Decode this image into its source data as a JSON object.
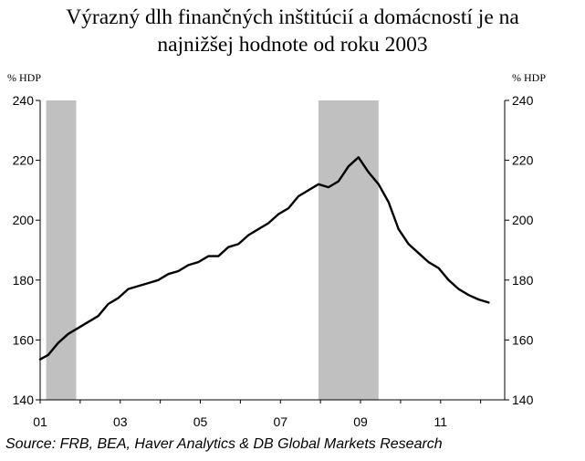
{
  "title_line1": "Výrazný dlh finančných inštitúcií a domácností je na",
  "title_line2": "najnižšej hodnote od roku 2003",
  "source": "Source: FRB, BEA, Haver Analytics & DB Global Markets Research",
  "colors": {
    "line": "#000000",
    "recession": "#c0c0c0",
    "axis": "#000000"
  },
  "chart_data": {
    "type": "line",
    "title": "Výrazný dlh finančných inštitúcií a domácností je na najnižšej hodnote od roku 2003",
    "ylabel_left": "% HDP",
    "ylabel_right": "% HDP",
    "xlabel": "",
    "ylim": [
      140,
      240
    ],
    "xlim": [
      2001.0,
      2012.6
    ],
    "y_ticks": [
      140,
      160,
      180,
      200,
      220,
      240
    ],
    "x_ticks": [
      {
        "value": 2001,
        "label": "01"
      },
      {
        "value": 2003,
        "label": "03"
      },
      {
        "value": 2005,
        "label": "05"
      },
      {
        "value": 2007,
        "label": "07"
      },
      {
        "value": 2009,
        "label": "09"
      },
      {
        "value": 2011,
        "label": "11"
      }
    ],
    "grid": false,
    "recession_bands": [
      [
        2001.15,
        2001.9
      ],
      [
        2007.95,
        2009.45
      ]
    ],
    "series": [
      {
        "x": [
          2001.0,
          2001.2,
          2001.45,
          2001.7,
          2001.95,
          2002.2,
          2002.45,
          2002.7,
          2002.95,
          2003.2,
          2003.45,
          2003.7,
          2003.95,
          2004.2,
          2004.45,
          2004.7,
          2004.95,
          2005.2,
          2005.45,
          2005.7,
          2005.95,
          2006.2,
          2006.45,
          2006.7,
          2006.95,
          2007.2,
          2007.45,
          2007.7,
          2007.95,
          2008.2,
          2008.45,
          2008.7,
          2008.95,
          2009.2,
          2009.45,
          2009.7,
          2009.95,
          2010.2,
          2010.45,
          2010.7,
          2010.95,
          2011.2,
          2011.45,
          2011.7,
          2011.95,
          2012.2
        ],
        "y": [
          153.5,
          155,
          159,
          162,
          164,
          166,
          168,
          172,
          174,
          177,
          178,
          179,
          180,
          182,
          183,
          185,
          186,
          188,
          188,
          191,
          192,
          195,
          197,
          199,
          202,
          204,
          208,
          210,
          212,
          211,
          213,
          218,
          221,
          216,
          212,
          206,
          197,
          192,
          189,
          186,
          184,
          180,
          177,
          175,
          173.5,
          172.5
        ]
      }
    ]
  }
}
